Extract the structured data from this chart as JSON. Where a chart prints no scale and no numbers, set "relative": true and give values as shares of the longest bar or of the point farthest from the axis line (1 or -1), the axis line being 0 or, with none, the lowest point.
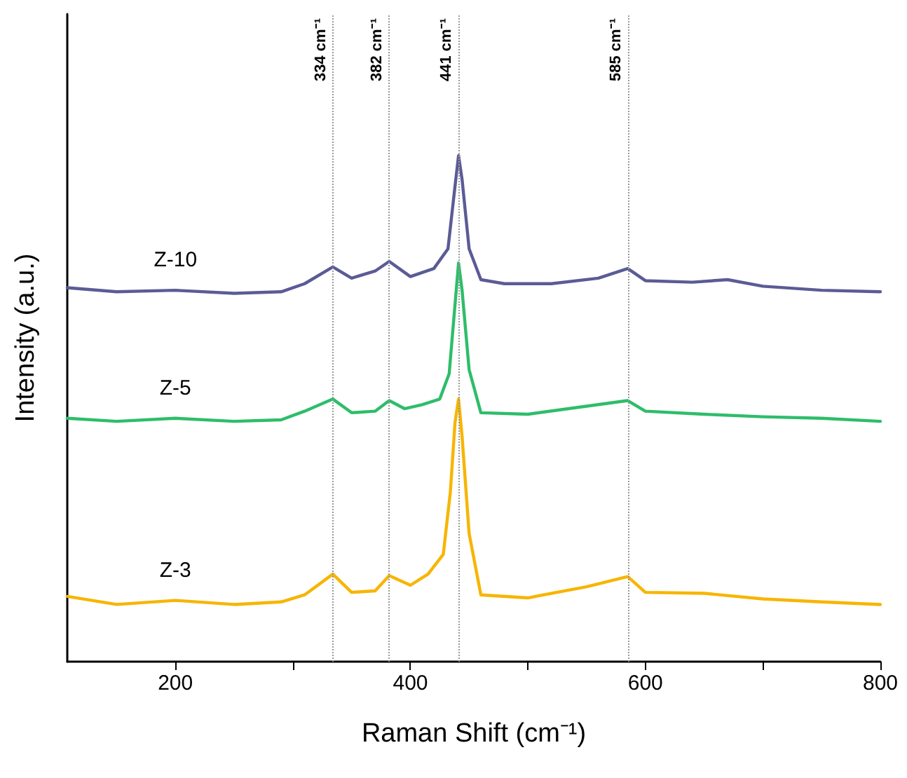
{
  "chart_data": {
    "type": "line",
    "xlabel": "Raman Shift (cm⁻¹)",
    "ylabel": "Intensity (a.u.)",
    "relative": true,
    "xlim": [
      108,
      800
    ],
    "xticks": [
      200,
      {
        "value": 300,
        "label": null
      },
      400,
      {
        "value": 500,
        "label": null
      },
      600,
      {
        "value": 700,
        "label": null
      },
      800
    ],
    "grid": false,
    "legend": false,
    "marker": "none",
    "line_style": "solid",
    "series": [
      {
        "name": "Z-10",
        "color": "#5b5b96",
        "x": [
          108,
          150,
          200,
          250,
          290,
          310,
          334,
          350,
          370,
          382,
          400,
          420,
          432,
          438,
          441,
          444,
          450,
          460,
          480,
          520,
          560,
          585,
          600,
          640,
          670,
          700,
          750,
          800
        ],
        "values": [
          0.739,
          0.731,
          0.734,
          0.728,
          0.731,
          0.747,
          0.78,
          0.758,
          0.772,
          0.791,
          0.761,
          0.777,
          0.816,
          0.94,
          1,
          0.953,
          0.816,
          0.755,
          0.747,
          0.747,
          0.758,
          0.777,
          0.753,
          0.75,
          0.755,
          0.742,
          0.734,
          0.731
        ]
      },
      {
        "name": "Z-5",
        "color": "#2ebd6a",
        "x": [
          108,
          150,
          200,
          250,
          290,
          310,
          334,
          350,
          370,
          382,
          395,
          410,
          425,
          433,
          438,
          441,
          444,
          450,
          460,
          500,
          550,
          585,
          600,
          650,
          700,
          750,
          800
        ],
        "values": [
          0.481,
          0.475,
          0.481,
          0.475,
          0.478,
          0.495,
          0.519,
          0.492,
          0.495,
          0.516,
          0.5,
          0.508,
          0.519,
          0.569,
          0.706,
          0.788,
          0.734,
          0.577,
          0.492,
          0.489,
          0.505,
          0.516,
          0.495,
          0.489,
          0.484,
          0.481,
          0.475
        ]
      },
      {
        "name": "Z-3",
        "color": "#f7b500",
        "x": [
          108,
          150,
          200,
          250,
          290,
          310,
          334,
          350,
          370,
          382,
          400,
          415,
          428,
          434,
          438,
          441,
          444,
          450,
          460,
          500,
          550,
          585,
          600,
          650,
          700,
          750,
          800
        ],
        "values": [
          0.129,
          0.113,
          0.121,
          0.113,
          0.118,
          0.132,
          0.173,
          0.137,
          0.14,
          0.17,
          0.151,
          0.173,
          0.212,
          0.335,
          0.473,
          0.519,
          0.445,
          0.253,
          0.132,
          0.126,
          0.148,
          0.168,
          0.137,
          0.135,
          0.124,
          0.118,
          0.113
        ]
      }
    ],
    "ref_lines": [
      {
        "axis": "x",
        "value": 334,
        "label": "334 cm⁻¹",
        "color": "#999999",
        "line_style": "dotted"
      },
      {
        "axis": "x",
        "value": 382,
        "label": "382 cm⁻¹",
        "color": "#999999",
        "line_style": "dotted"
      },
      {
        "axis": "x",
        "value": 441,
        "label": "441 cm⁻¹",
        "color": "#999999",
        "line_style": "dotted"
      },
      {
        "axis": "x",
        "value": 585,
        "label": "585 cm⁻¹",
        "color": "#999999",
        "line_style": "dotted"
      }
    ]
  }
}
